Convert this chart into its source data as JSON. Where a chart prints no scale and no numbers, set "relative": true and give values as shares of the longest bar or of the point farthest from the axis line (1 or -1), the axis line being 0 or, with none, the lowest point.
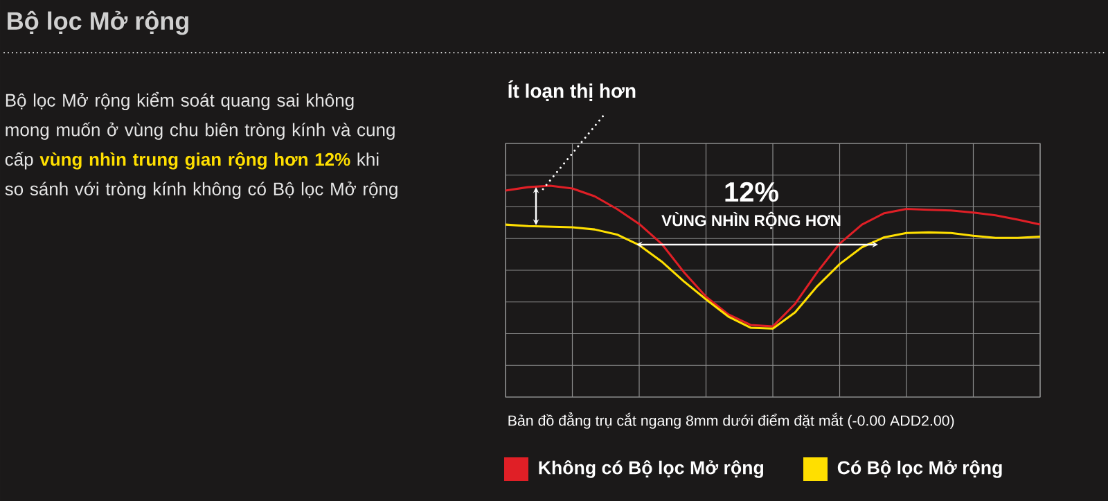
{
  "chart_data": {
    "type": "line",
    "title": "Bộ lọc Mở rộng",
    "relative": true,
    "grid": true,
    "legend": "bottom",
    "categories": [
      null,
      null,
      null,
      null,
      null,
      null,
      null,
      null,
      null,
      null,
      null,
      null,
      null,
      null,
      null,
      null,
      null,
      null,
      null,
      null,
      null,
      null,
      null,
      null,
      null
    ],
    "series": [
      {
        "name": "Không có Bộ lọc Mở rộng",
        "color": "#e01f26",
        "values": [
          0.977,
          0.993,
          1.0,
          0.987,
          0.95,
          0.89,
          0.819,
          0.726,
          0.592,
          0.475,
          0.391,
          0.341,
          0.334,
          0.441,
          0.592,
          0.726,
          0.816,
          0.87,
          0.89,
          0.886,
          0.883,
          0.873,
          0.86,
          0.839,
          0.816
        ]
      },
      {
        "name": "Có Bộ lọc Mở rộng",
        "color": "#ffdf00",
        "values": [
          0.816,
          0.809,
          0.806,
          0.803,
          0.793,
          0.769,
          0.719,
          0.642,
          0.548,
          0.462,
          0.381,
          0.328,
          0.324,
          0.401,
          0.525,
          0.629,
          0.709,
          0.756,
          0.776,
          0.779,
          0.776,
          0.763,
          0.753,
          0.753,
          0.759
        ]
      }
    ],
    "annotations": [
      "Bộ lọc Mở rộng kiểm soát quang sai không mong muốn ở vùng chu biên tròng kính và cung cấp **vùng nhìn trung gian rộng hơn 12%** khi so sánh với tròng kính không có Bộ lọc Mở rộng",
      "Ít loạn thị hơn",
      "12%",
      "VÙNG NHÌN RỘNG HƠN",
      "Bản đồ đẳng trụ cắt ngang 8mm dưới điểm đặt mắt (-0.00 ADD2.00)"
    ]
  }
}
